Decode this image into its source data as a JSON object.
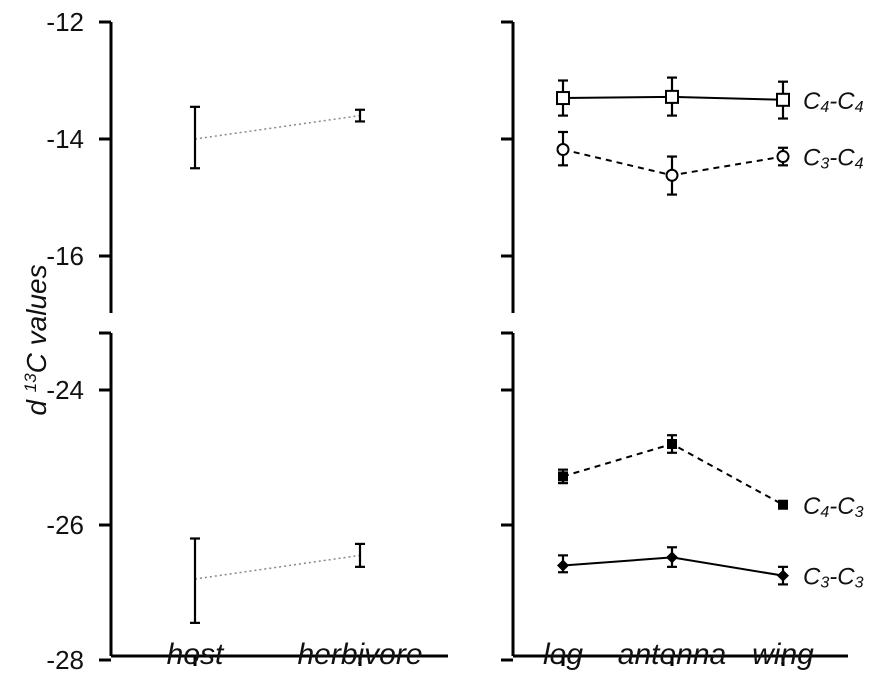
{
  "chart_data": [
    {
      "type": "line",
      "panel": "left-top",
      "ylabel": "d 13C values",
      "ylabel_parts": {
        "prefix": "d ",
        "superscript": "13",
        "suffix": "C values"
      },
      "ylim": [
        -17.2,
        -12
      ],
      "yticks": [
        -12,
        -14,
        -16
      ],
      "ytick_labels": [
        "-12",
        "-14",
        "-16"
      ],
      "categories": [
        "host",
        "herbivore"
      ],
      "series": [
        {
          "values": [
            -14.0,
            -13.6
          ],
          "err_low": [
            -14.5,
            -13.7
          ],
          "err_high": [
            -13.45,
            -13.5
          ],
          "line_style": "dotted",
          "marker": "none"
        }
      ]
    },
    {
      "type": "line",
      "panel": "left-bottom",
      "ylim": [
        -28,
        -22.1
      ],
      "yticks": [
        -24,
        -26,
        -28
      ],
      "ytick_labels": [
        "-24",
        "-26",
        "-28"
      ],
      "categories": [
        "host",
        "herbivore"
      ],
      "series": [
        {
          "values": [
            -26.8,
            -26.45
          ],
          "err_low": [
            -27.45,
            -26.62
          ],
          "err_high": [
            -26.2,
            -26.28
          ],
          "line_style": "dotted",
          "marker": "none"
        }
      ]
    },
    {
      "type": "line",
      "panel": "right-top",
      "ylim": [
        -17.2,
        -12
      ],
      "yticks": [
        -12,
        -14,
        -16
      ],
      "categories": [
        "leg",
        "antenna",
        "wing"
      ],
      "series": [
        {
          "name": "C4-C4",
          "name_parts": [
            "C",
            "4",
            "-C",
            "4"
          ],
          "values": [
            -13.3,
            -13.28,
            -13.33
          ],
          "err_low": [
            -13.6,
            -13.6,
            -13.65
          ],
          "err_high": [
            -13.0,
            -12.95,
            -13.02
          ],
          "line_style": "solid",
          "marker": "open-square"
        },
        {
          "name": "C3-C4",
          "name_parts": [
            "C",
            "3",
            "-C",
            "4"
          ],
          "values": [
            -14.18,
            -14.62,
            -14.3
          ],
          "err_low": [
            -14.45,
            -14.95,
            -14.45
          ],
          "err_high": [
            -13.88,
            -14.3,
            -14.15
          ],
          "line_style": "dashed",
          "marker": "open-circle"
        }
      ]
    },
    {
      "type": "line",
      "panel": "right-bottom",
      "ylim": [
        -28,
        -22.1
      ],
      "yticks": [
        -24,
        -26,
        -28
      ],
      "categories": [
        "leg",
        "antenna",
        "wing"
      ],
      "series": [
        {
          "name": "C4-C3",
          "name_parts": [
            "C",
            "4",
            "-C",
            "3"
          ],
          "values": [
            -25.28,
            -24.8,
            -25.7
          ],
          "err_low": [
            -25.38,
            -24.93,
            -25.74
          ],
          "err_high": [
            -25.18,
            -24.67,
            -25.66
          ],
          "line_style": "dashed",
          "marker": "filled-square"
        },
        {
          "name": "C3-C3",
          "name_parts": [
            "C",
            "3",
            "-C",
            "3"
          ],
          "values": [
            -26.6,
            -26.48,
            -26.75
          ],
          "err_low": [
            -26.7,
            -26.62,
            -26.88
          ],
          "err_high": [
            -26.45,
            -26.33,
            -26.62
          ],
          "line_style": "solid",
          "marker": "filled-diamond"
        }
      ]
    }
  ]
}
